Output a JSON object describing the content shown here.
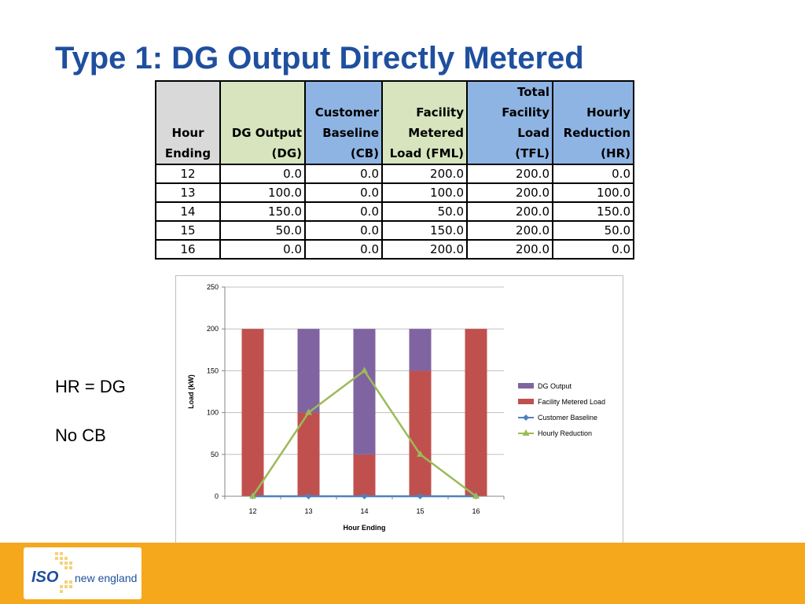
{
  "slide": {
    "title": "Type 1: DG Output Directly Metered",
    "note_hr": "HR = DG",
    "note_cb": "No CB",
    "logo_iso": "ISO",
    "logo_ne": "new england"
  },
  "table": {
    "headers": [
      [
        "Hour",
        "Ending"
      ],
      [
        "DG Output",
        "(DG)"
      ],
      [
        "Customer",
        "Baseline",
        "(CB)"
      ],
      [
        "Facility",
        "Metered",
        "Load (FML)"
      ],
      [
        "Total",
        "Facility Load",
        "(TFL)"
      ],
      [
        "Hourly",
        "Reduction",
        "(HR)"
      ]
    ],
    "rows": [
      [
        "12",
        "0.0",
        "0.0",
        "200.0",
        "200.0",
        "0.0"
      ],
      [
        "13",
        "100.0",
        "0.0",
        "100.0",
        "200.0",
        "100.0"
      ],
      [
        "14",
        "150.0",
        "0.0",
        "50.0",
        "200.0",
        "150.0"
      ],
      [
        "15",
        "50.0",
        "0.0",
        "150.0",
        "200.0",
        "50.0"
      ],
      [
        "16",
        "0.0",
        "0.0",
        "200.0",
        "200.0",
        "0.0"
      ]
    ]
  },
  "chart_data": {
    "type": "bar",
    "stacked": true,
    "categories": [
      "12",
      "13",
      "14",
      "15",
      "16"
    ],
    "series": [
      {
        "name": "Facility Metered Load",
        "kind": "bar",
        "color": "#c0504d",
        "values": [
          200,
          100,
          50,
          150,
          200
        ]
      },
      {
        "name": "DG Output",
        "kind": "bar",
        "color": "#8064a2",
        "values": [
          0,
          100,
          150,
          50,
          0
        ]
      },
      {
        "name": "Customer Baseline",
        "kind": "line",
        "marker": "diamond",
        "color": "#4f81bd",
        "values": [
          0,
          0,
          0,
          0,
          0
        ]
      },
      {
        "name": "Hourly Reduction",
        "kind": "line",
        "marker": "triangle",
        "color": "#9bbb59",
        "values": [
          0,
          100,
          150,
          50,
          0
        ]
      }
    ],
    "legend_order": [
      "DG Output",
      "Facility Metered Load",
      "Customer Baseline",
      "Hourly Reduction"
    ],
    "xlabel": "Hour Ending",
    "ylabel": "Load (kW)",
    "ylim": [
      0,
      250
    ],
    "yticks": [
      0,
      50,
      100,
      150,
      200,
      250
    ],
    "grid": true,
    "legend_position": "right"
  }
}
